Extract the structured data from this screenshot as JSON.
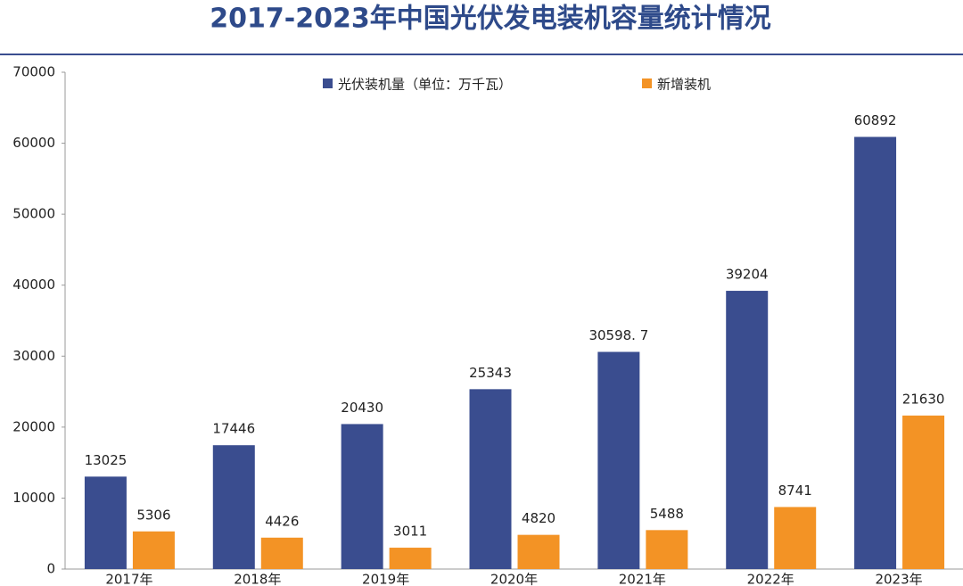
{
  "chart_data": {
    "type": "bar",
    "title": "2017-2023年中国光伏发电装机容量统计情况",
    "categories": [
      "2017年",
      "2018年",
      "2019年",
      "2020年",
      "2021年",
      "2022年",
      "2023年"
    ],
    "series": [
      {
        "name": "光伏装机量（单位：万千瓦）",
        "color": "#3a4d8f",
        "values": [
          13025,
          17446,
          20430,
          25343,
          30598.7,
          39204,
          60892
        ],
        "value_labels": [
          "13025",
          "17446",
          "20430",
          "25343",
          "30598. 7",
          "39204",
          "60892"
        ]
      },
      {
        "name": "新增装机",
        "color": "#f39325",
        "values": [
          5306,
          4426,
          3011,
          4820,
          5488,
          8741,
          21630
        ]
      }
    ],
    "ylim": [
      0,
      70000
    ],
    "yticks": [
      0,
      10000,
      20000,
      30000,
      40000,
      50000,
      60000,
      70000
    ],
    "legend": "top"
  }
}
